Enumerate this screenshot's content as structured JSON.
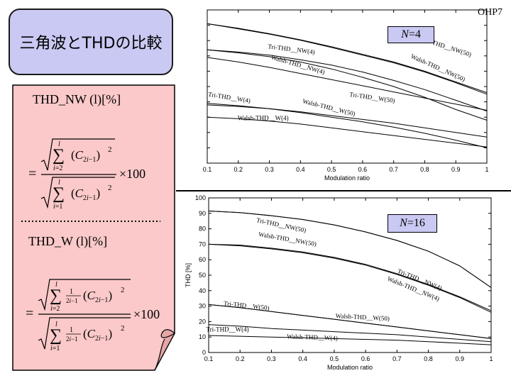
{
  "slide": {
    "title": "三角波とTHDの比較",
    "page_label": "OHP7",
    "nw_heading": "THD_NW (l)[%]",
    "w_heading": "THD_W (l)[%]",
    "formula_multiplier": "×100"
  },
  "colors": {
    "title_bg": "#c9c9f3",
    "panel_bg": "#fbc9c9",
    "nbox_bg": "#c9c9f3",
    "line": "#000000"
  },
  "chart_data": [
    {
      "type": "line",
      "n_label": "N=4",
      "xlabel": "Modulation ratio",
      "ylabel": "",
      "xlim": [
        0.1,
        1
      ],
      "ylim": [
        0,
        100
      ],
      "x_ticks": [
        "0.1",
        "0.2",
        "0.3",
        "0.4",
        "0.5",
        "0.6",
        "0.7",
        "0.8",
        "0.9",
        "1"
      ],
      "x": [
        0.1,
        0.2,
        0.3,
        0.4,
        0.5,
        0.6,
        0.7,
        0.8,
        0.9,
        1
      ],
      "series": [
        {
          "name": "Tri-THD__NW(50)",
          "values": [
            91,
            88,
            84.5,
            80.5,
            76,
            71,
            66,
            60,
            53,
            46
          ]
        },
        {
          "name": "Walsh-THD__NW(50)",
          "values": [
            91,
            87.7,
            84.2,
            80.2,
            75.5,
            70.5,
            65.5,
            59.5,
            52.5,
            45
          ]
        },
        {
          "name": "Tri-THD__NW(4)",
          "values": [
            74,
            72.5,
            70.5,
            67.5,
            64,
            59.5,
            54,
            48,
            41,
            34
          ]
        },
        {
          "name": "Walsh-THD__NW(4)",
          "values": [
            69,
            66,
            62.5,
            58.5,
            54.5,
            50.5,
            46.5,
            42.5,
            38.5,
            34.5
          ]
        },
        {
          "name": "Tri-THD__W(50)",
          "values": [
            74,
            72,
            69.5,
            66,
            61.5,
            56,
            50,
            43,
            35,
            28
          ]
        },
        {
          "name": "Walsh-THD__W(50)",
          "values": [
            38,
            37,
            35.5,
            33.5,
            31,
            28.5,
            26,
            23,
            20,
            17
          ]
        },
        {
          "name": "Tri-THD__W(4)",
          "values": [
            39,
            37.5,
            35.5,
            33,
            30,
            27,
            23.5,
            19.5,
            15,
            10
          ]
        },
        {
          "name": "Walsh-THD__W(4)",
          "values": [
            30,
            29,
            27.5,
            25.5,
            23,
            20.5,
            18,
            15.5,
            13,
            10.5
          ]
        }
      ],
      "labels": [
        {
          "text": "Tri-THD__NW(50)",
          "x": 0.87,
          "y": 74.5,
          "rot": 18
        },
        {
          "text": "Walsh-THD__NW(50)",
          "x": 0.84,
          "y": 61,
          "rot": 24
        },
        {
          "text": "Tri-THD__NW(4)",
          "x": 0.37,
          "y": 73,
          "rot": 7
        },
        {
          "text": "Walsh-THD__NW(4)",
          "x": 0.39,
          "y": 63,
          "rot": 16
        },
        {
          "text": "Tri-THD__W(50)",
          "x": 0.63,
          "y": 41.5,
          "rot": 8
        },
        {
          "text": "Walsh-THD__W(50)",
          "x": 0.49,
          "y": 35,
          "rot": 14
        },
        {
          "text": "Tri-THD__W(4)",
          "x": 0.17,
          "y": 41.5,
          "rot": 9
        },
        {
          "text": "Walsh-THD__W(4)",
          "x": 0.28,
          "y": 28,
          "rot": 0
        }
      ]
    },
    {
      "type": "line",
      "n_label": "N=16",
      "xlabel": "Modulation ratio",
      "ylabel": "THD [%]",
      "xlim": [
        0.1,
        1
      ],
      "ylim": [
        0,
        100
      ],
      "x_ticks": [
        "0.1",
        "0.2",
        "0.3",
        "0.4",
        "0.5",
        "0.6",
        "0.7",
        "0.8",
        "0.9",
        "1"
      ],
      "y_ticks": [
        "0",
        "10",
        "20",
        "30",
        "40",
        "50",
        "60",
        "70",
        "80",
        "90",
        "100"
      ],
      "x": [
        0.1,
        0.2,
        0.3,
        0.4,
        0.5,
        0.6,
        0.7,
        0.8,
        0.9,
        1
      ],
      "series": [
        {
          "name": "Tri-THD__NW(50)",
          "values": [
            91.5,
            90.5,
            88.5,
            86,
            82.5,
            78,
            72.5,
            65.5,
            56,
            42
          ]
        },
        {
          "name": "Walsh-THD__NW(50)",
          "values": [
            91.5,
            90.5,
            88.5,
            86,
            82.5,
            78,
            72.5,
            65.5,
            56,
            42
          ]
        },
        {
          "name": "Tri-THD__NW(4)",
          "values": [
            70,
            69.5,
            67.5,
            65,
            61.5,
            57,
            51,
            44,
            36,
            27
          ]
        },
        {
          "name": "Walsh-THD__NW(4)",
          "values": [
            70,
            69,
            67,
            64.5,
            61,
            56.5,
            50.5,
            43.5,
            35.5,
            26
          ]
        },
        {
          "name": "Tri-THD__W(50)",
          "values": [
            31,
            29,
            26.5,
            24,
            21.5,
            19,
            16.5,
            14,
            11.5,
            9
          ]
        },
        {
          "name": "Walsh-THD__W(50)",
          "values": [
            31,
            29,
            26.5,
            24,
            21.5,
            19,
            16.5,
            14,
            11.5,
            9
          ]
        },
        {
          "name": "Tri-THD__W(4)",
          "values": [
            18,
            17,
            15.5,
            14.5,
            13.5,
            12.5,
            11.5,
            10,
            8.5,
            7
          ]
        },
        {
          "name": "Walsh-THD__W(4)",
          "values": [
            11,
            10.5,
            10,
            9.5,
            9,
            8.5,
            8,
            7,
            6,
            5
          ]
        }
      ],
      "labels": [
        {
          "text": "Tri-THD__NW(50)",
          "x": 0.33,
          "y": 81,
          "rot": 12
        },
        {
          "text": "Walsh-THD__NW(50)",
          "x": 0.35,
          "y": 72,
          "rot": 10
        },
        {
          "text": "Tri-THD__NW(4)",
          "x": 0.77,
          "y": 46,
          "rot": 22
        },
        {
          "text": "Walsh-THD__NW(4)",
          "x": 0.75,
          "y": 40,
          "rot": 22
        },
        {
          "text": "Tri-THD__W(50)",
          "x": 0.22,
          "y": 29,
          "rot": 6
        },
        {
          "text": "Walsh-THD__W(50)",
          "x": 0.59,
          "y": 21.5,
          "rot": 3
        },
        {
          "text": "Tri-THD__W(4)",
          "x": 0.16,
          "y": 13.5,
          "rot": 0
        },
        {
          "text": "Walsh-THD__W(4)",
          "x": 0.43,
          "y": 8.5,
          "rot": 2
        }
      ]
    }
  ]
}
